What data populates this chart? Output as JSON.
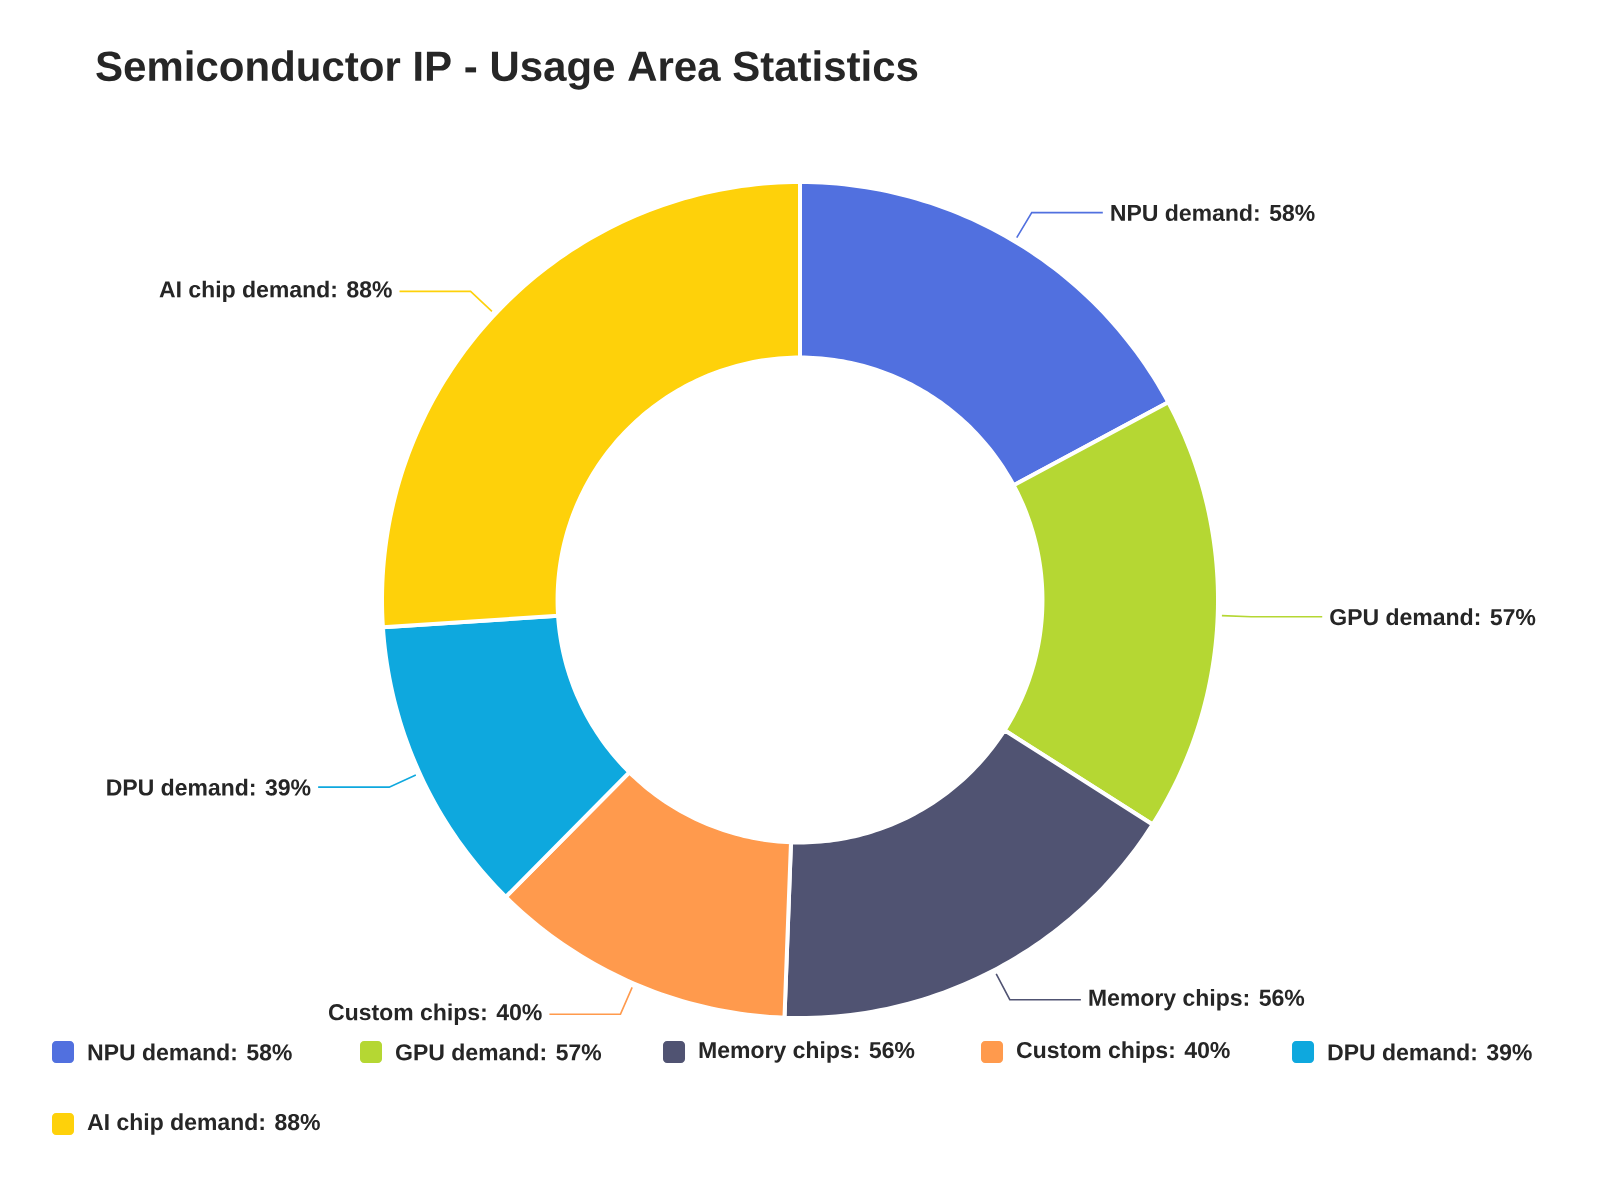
{
  "chart_data": {
    "type": "donut",
    "title": "Semiconductor IP - Usage Area Statistics",
    "categories": [
      "NPU demand: 58%",
      "GPU demand: 57%",
      "Memory chips: 56%",
      "Custom chips: 40%",
      "DPU demand: 39%",
      "AI chip demand: 88%"
    ],
    "values": [
      58,
      57,
      56,
      40,
      39,
      88
    ],
    "colors": [
      "#5170df",
      "#b5d733",
      "#505372",
      "#ff9a4d",
      "#0ea8de",
      "#fed10a"
    ],
    "legend": "bottom"
  }
}
